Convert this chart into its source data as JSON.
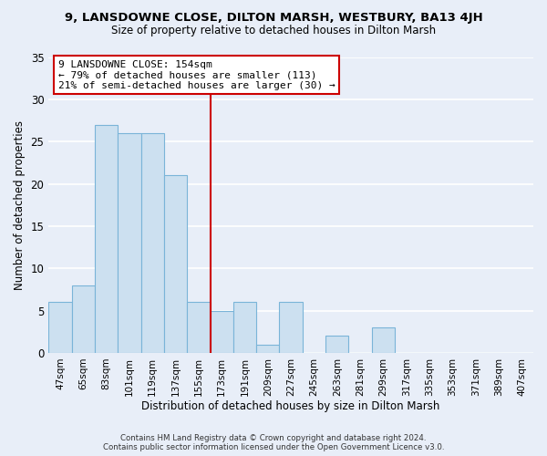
{
  "title": "9, LANSDOWNE CLOSE, DILTON MARSH, WESTBURY, BA13 4JH",
  "subtitle": "Size of property relative to detached houses in Dilton Marsh",
  "xlabel": "Distribution of detached houses by size in Dilton Marsh",
  "ylabel": "Number of detached properties",
  "footer_line1": "Contains HM Land Registry data © Crown copyright and database right 2024.",
  "footer_line2": "Contains public sector information licensed under the Open Government Licence v3.0.",
  "bin_labels": [
    "47sqm",
    "65sqm",
    "83sqm",
    "101sqm",
    "119sqm",
    "137sqm",
    "155sqm",
    "173sqm",
    "191sqm",
    "209sqm",
    "227sqm",
    "245sqm",
    "263sqm",
    "281sqm",
    "299sqm",
    "317sqm",
    "335sqm",
    "353sqm",
    "371sqm",
    "389sqm",
    "407sqm"
  ],
  "bar_values": [
    6,
    8,
    27,
    26,
    26,
    21,
    6,
    5,
    6,
    1,
    6,
    0,
    2,
    0,
    3,
    0,
    0,
    0,
    0,
    0,
    0
  ],
  "bar_color": "#cce0f0",
  "bar_edge_color": "#7ab4d8",
  "reference_line_color": "#cc0000",
  "annotation_title": "9 LANSDOWNE CLOSE: 154sqm",
  "annotation_line1": "← 79% of detached houses are smaller (113)",
  "annotation_line2": "21% of semi-detached houses are larger (30) →",
  "annotation_box_edge_color": "#cc0000",
  "ylim": [
    0,
    35
  ],
  "yticks": [
    0,
    5,
    10,
    15,
    20,
    25,
    30,
    35
  ],
  "background_color": "#e8eef8",
  "plot_bg_color": "#e8eef8",
  "grid_color": "#ffffff"
}
